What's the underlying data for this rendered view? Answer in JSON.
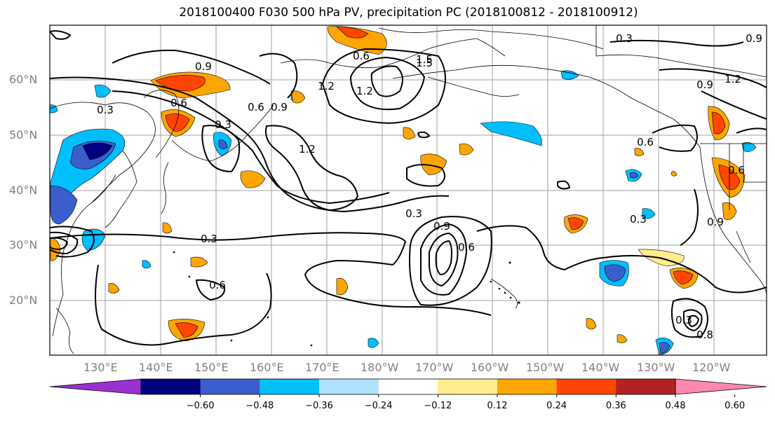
{
  "title": "2018100400 F030 500 hPa PV, precipitation PC (2018100812 - 2018100912)",
  "lat_labels": [
    "60°N",
    "50°N",
    "40°N",
    "30°N",
    "20°N"
  ],
  "lon_labels": [
    "130°E",
    "140°E",
    "150°E",
    "160°E",
    "170°E",
    "180°W",
    "170°W",
    "160°W",
    "150°W",
    "140°W",
    "130°W",
    "120°W"
  ],
  "colorbar": {
    "colors": [
      "#9b30d0",
      "#00007f",
      "#3a5fcd",
      "#00bfff",
      "#b0e2ff",
      "#ffffff",
      "#ffec8b",
      "#ffa500",
      "#ff4500",
      "#b22222",
      "#ff88b0"
    ],
    "tick_labels": [
      "−0.60",
      "−0.48",
      "−0.36",
      "−0.24",
      "−0.12",
      "0.12",
      "0.24",
      "0.36",
      "0.48",
      "0.60"
    ]
  },
  "contour_labels": [
    "0.3",
    "0.6",
    "0.9",
    "1.2",
    "1.5",
    "0.3",
    "0.6",
    "0.9",
    "1.2",
    "0.3",
    "0.3",
    "0.6",
    "0.9",
    "1.2",
    "1.5",
    "0.6",
    "0.3",
    "0.9",
    "1.2",
    "0.9",
    "0.6",
    "0.3",
    "0.6",
    "0.8",
    "0.3",
    "0.6",
    "0.9"
  ]
}
